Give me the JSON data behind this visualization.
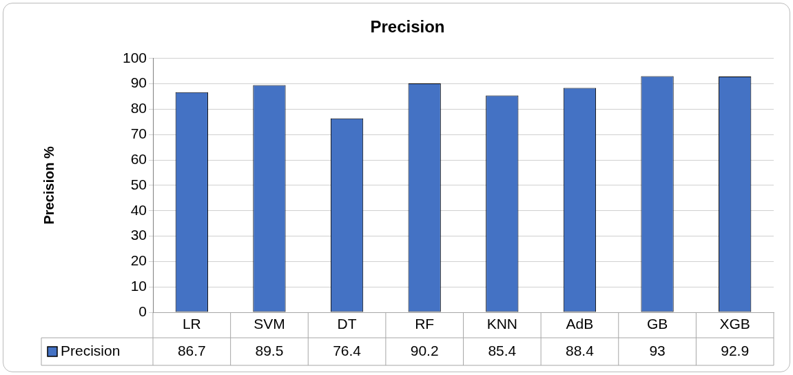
{
  "chart_data": {
    "type": "bar",
    "title": "Precision",
    "ylabel": "Precision %",
    "categories": [
      "LR",
      "SVM",
      "DT",
      "RF",
      "KNN",
      "AdB",
      "GB",
      "XGB"
    ],
    "series": [
      {
        "name": "Precision",
        "color": "#4472c4",
        "values": [
          86.7,
          89.5,
          76.4,
          90.2,
          85.4,
          88.4,
          93,
          92.9
        ]
      }
    ],
    "ylim": [
      0,
      100
    ],
    "yticks": [
      0,
      10,
      20,
      30,
      40,
      50,
      60,
      70,
      80,
      90,
      100
    ],
    "grid": "y",
    "legend": "bottom left",
    "data_labels": true
  }
}
